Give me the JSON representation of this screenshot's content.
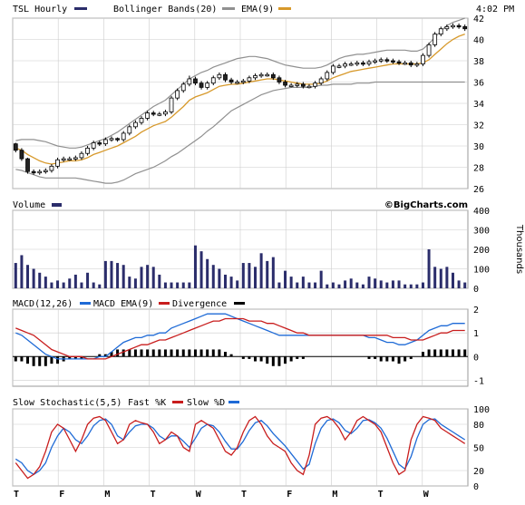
{
  "header": {
    "symbol_label": "TSL Hourly",
    "bollinger_label": "Bollinger Bands(20)",
    "ema_label": "EMA(9)",
    "time_label": "4:02 PM"
  },
  "volume_panel": {
    "label": "Volume",
    "units_label": "Thousands",
    "brand": "©BigCharts.com"
  },
  "macd_panel": {
    "macd_label": "MACD(12,26)",
    "macd_ema_label": "MACD EMA(9)",
    "divergence_label": "Divergence"
  },
  "stoch_panel": {
    "title_label": "Slow Stochastic(5,5)",
    "fast_label": "Fast %K",
    "slow_label": "Slow %D"
  },
  "colors": {
    "candle_up": "#ffffff",
    "candle_down": "#232323",
    "candle_outline": "#000000",
    "navy": "#2b2d6b",
    "bollinger": "#909090",
    "ema": "#d7992b",
    "macd": "#1e6ad6",
    "signal": "#c81d1d",
    "grid": "#cccccc"
  },
  "chart_data": [
    {
      "type": "candlestick",
      "title": "TSL Hourly",
      "x_labels": [
        "T",
        "F",
        "M",
        "T",
        "W",
        "T",
        "F",
        "M",
        "T",
        "W"
      ],
      "ylim": [
        26,
        42
      ],
      "yticks": [
        26,
        28,
        30,
        32,
        34,
        36,
        38,
        40,
        42
      ],
      "close": [
        29.6,
        28.8,
        27.6,
        27.5,
        27.6,
        27.7,
        28.1,
        28.7,
        28.8,
        28.8,
        28.9,
        29.3,
        29.8,
        30.3,
        30.2,
        30.6,
        30.7,
        30.6,
        31.2,
        31.8,
        32.2,
        32.6,
        33.1,
        33.0,
        33.0,
        33.2,
        34.5,
        35.2,
        35.8,
        36.3,
        35.9,
        35.5,
        35.9,
        36.4,
        36.7,
        36.2,
        36.0,
        36.0,
        36.1,
        36.4,
        36.6,
        36.7,
        36.7,
        36.4,
        36.0,
        35.7,
        35.7,
        35.8,
        35.6,
        35.6,
        35.9,
        36.3,
        36.9,
        37.5,
        37.5,
        37.7,
        37.7,
        37.8,
        37.7,
        37.9,
        38.0,
        38.1,
        38.0,
        37.9,
        37.8,
        37.8,
        37.6,
        37.7,
        38.5,
        39.5,
        40.5,
        41.0,
        41.2,
        41.3,
        41.2,
        41.0
      ],
      "open": [
        30.2,
        29.6,
        28.8,
        27.6,
        27.5,
        27.6,
        27.7,
        28.1,
        28.7,
        28.8,
        28.8,
        28.9,
        29.3,
        29.8,
        30.3,
        30.2,
        30.6,
        30.7,
        30.6,
        31.2,
        31.8,
        32.2,
        32.6,
        33.1,
        33.0,
        33.0,
        33.2,
        34.5,
        35.2,
        35.8,
        36.3,
        35.9,
        35.5,
        35.9,
        36.4,
        36.7,
        36.2,
        36.0,
        36.0,
        36.1,
        36.4,
        36.6,
        36.7,
        36.7,
        36.4,
        36.0,
        35.7,
        35.7,
        35.8,
        35.6,
        35.6,
        35.9,
        36.3,
        36.9,
        37.5,
        37.5,
        37.7,
        37.7,
        37.8,
        37.7,
        37.9,
        38.0,
        38.1,
        38.0,
        37.9,
        37.8,
        37.8,
        37.6,
        37.7,
        38.5,
        39.5,
        40.5,
        41.0,
        41.2,
        41.3,
        41.2
      ],
      "high": [
        30.3,
        29.8,
        28.9,
        27.8,
        27.8,
        27.9,
        28.3,
        28.9,
        29.0,
        29.0,
        29.1,
        29.5,
        30.0,
        30.5,
        30.5,
        30.8,
        30.9,
        30.8,
        31.4,
        32.0,
        32.4,
        32.8,
        33.3,
        33.3,
        33.2,
        33.4,
        34.7,
        35.4,
        36.0,
        36.6,
        36.5,
        36.1,
        36.1,
        36.6,
        36.9,
        36.9,
        36.4,
        36.2,
        36.3,
        36.6,
        36.8,
        36.9,
        36.9,
        36.9,
        36.6,
        36.2,
        35.9,
        36.0,
        36.0,
        35.8,
        36.1,
        36.5,
        37.1,
        37.7,
        37.7,
        37.9,
        37.9,
        38.0,
        38.0,
        38.1,
        38.2,
        38.3,
        38.3,
        38.2,
        38.1,
        38.0,
        38.0,
        37.9,
        38.7,
        39.7,
        40.7,
        41.2,
        41.4,
        41.5,
        41.5,
        41.4
      ],
      "low": [
        29.4,
        28.6,
        27.4,
        27.3,
        27.3,
        27.4,
        27.5,
        27.9,
        28.5,
        28.6,
        28.6,
        28.7,
        29.1,
        29.6,
        30.0,
        30.0,
        30.4,
        30.4,
        30.4,
        31.0,
        31.6,
        32.0,
        32.4,
        32.8,
        32.8,
        32.8,
        33.0,
        34.3,
        35.0,
        35.6,
        35.7,
        35.3,
        35.3,
        35.7,
        36.2,
        36.0,
        35.8,
        35.8,
        35.8,
        35.9,
        36.2,
        36.4,
        36.5,
        36.2,
        35.8,
        35.5,
        35.5,
        35.5,
        35.4,
        35.4,
        35.4,
        35.7,
        36.1,
        36.7,
        37.3,
        37.3,
        37.5,
        37.5,
        37.5,
        37.5,
        37.7,
        37.8,
        37.8,
        37.7,
        37.6,
        37.6,
        37.4,
        37.4,
        37.5,
        38.3,
        39.3,
        40.3,
        40.8,
        41.0,
        41.0,
        40.8
      ],
      "ema9": [
        29.8,
        29.6,
        29.2,
        28.9,
        28.6,
        28.4,
        28.3,
        28.4,
        28.5,
        28.6,
        28.6,
        28.7,
        28.9,
        29.2,
        29.4,
        29.6,
        29.8,
        30.0,
        30.3,
        30.6,
        30.9,
        31.3,
        31.6,
        31.9,
        32.1,
        32.3,
        32.7,
        33.2,
        33.7,
        34.3,
        34.6,
        34.8,
        35.0,
        35.3,
        35.6,
        35.7,
        35.8,
        35.8,
        35.9,
        36.0,
        36.1,
        36.2,
        36.3,
        36.3,
        36.2,
        36.1,
        36.0,
        35.9,
        35.8,
        35.8,
        35.8,
        35.9,
        36.1,
        36.4,
        36.6,
        36.8,
        37.0,
        37.1,
        37.2,
        37.3,
        37.4,
        37.5,
        37.6,
        37.7,
        37.7,
        37.7,
        37.7,
        37.7,
        37.8,
        38.1,
        38.6,
        39.1,
        39.6,
        40.0,
        40.3,
        40.5
      ],
      "bb_upper": [
        30.5,
        30.6,
        30.6,
        30.6,
        30.5,
        30.4,
        30.2,
        30.0,
        29.9,
        29.8,
        29.8,
        29.9,
        30.1,
        30.3,
        30.5,
        30.7,
        31.0,
        31.3,
        31.7,
        32.1,
        32.5,
        32.9,
        33.3,
        33.7,
        34.0,
        34.3,
        34.8,
        35.3,
        35.8,
        36.3,
        36.6,
        36.9,
        37.1,
        37.4,
        37.6,
        37.8,
        38.0,
        38.2,
        38.3,
        38.4,
        38.4,
        38.3,
        38.2,
        38.0,
        37.8,
        37.6,
        37.5,
        37.4,
        37.3,
        37.3,
        37.3,
        37.4,
        37.6,
        37.9,
        38.2,
        38.4,
        38.5,
        38.6,
        38.6,
        38.7,
        38.8,
        38.9,
        39.0,
        39.0,
        39.0,
        39.0,
        38.9,
        38.9,
        39.1,
        39.6,
        40.2,
        40.8,
        41.3,
        41.6,
        41.8,
        42.0
      ],
      "bb_lower": [
        27.8,
        27.7,
        27.5,
        27.3,
        27.1,
        27.0,
        27.0,
        27.0,
        27.0,
        27.0,
        27.0,
        26.9,
        26.8,
        26.7,
        26.6,
        26.5,
        26.5,
        26.6,
        26.8,
        27.1,
        27.4,
        27.6,
        27.8,
        28.0,
        28.3,
        28.6,
        29.0,
        29.3,
        29.7,
        30.1,
        30.5,
        30.9,
        31.4,
        31.8,
        32.3,
        32.8,
        33.3,
        33.6,
        33.9,
        34.2,
        34.5,
        34.8,
        35.0,
        35.2,
        35.3,
        35.4,
        35.5,
        35.5,
        35.5,
        35.5,
        35.6,
        35.7,
        35.7,
        35.8,
        35.8,
        35.8,
        35.8,
        35.9,
        35.9,
        35.9,
        36.0,
        36.0,
        36.0,
        36.0,
        36.0,
        36.0,
        36.0,
        36.0,
        36.0,
        36.0,
        36.0,
        36.0,
        36.0,
        36.0,
        36.0,
        36.0
      ]
    },
    {
      "type": "bar",
      "title": "Volume",
      "ylabel": "Thousands",
      "ylim": [
        0,
        400
      ],
      "yticks": [
        0,
        100,
        200,
        300,
        400
      ],
      "values": [
        130,
        170,
        120,
        100,
        80,
        60,
        30,
        40,
        30,
        50,
        70,
        30,
        80,
        30,
        20,
        140,
        140,
        130,
        120,
        60,
        50,
        110,
        120,
        110,
        70,
        30,
        30,
        30,
        30,
        30,
        220,
        190,
        150,
        120,
        100,
        70,
        60,
        40,
        130,
        130,
        110,
        180,
        140,
        160,
        30,
        90,
        60,
        30,
        60,
        30,
        30,
        90,
        20,
        30,
        20,
        40,
        50,
        30,
        20,
        60,
        50,
        40,
        30,
        40,
        40,
        20,
        20,
        20,
        30,
        200,
        110,
        100,
        110,
        80,
        40,
        30
      ]
    },
    {
      "type": "line",
      "title": "MACD(12,26)",
      "ylim": [
        -1.25,
        2.0
      ],
      "yticks": [
        -1,
        0,
        1,
        2
      ],
      "series": [
        {
          "name": "MACD EMA(9)",
          "values": [
            1.0,
            0.9,
            0.7,
            0.5,
            0.3,
            0.1,
            0.0,
            -0.1,
            -0.1,
            -0.1,
            -0.1,
            -0.1,
            -0.1,
            -0.1,
            0.0,
            0.0,
            0.2,
            0.4,
            0.6,
            0.7,
            0.8,
            0.8,
            0.9,
            0.9,
            1.0,
            1.0,
            1.2,
            1.3,
            1.4,
            1.5,
            1.6,
            1.7,
            1.8,
            1.8,
            1.8,
            1.8,
            1.7,
            1.6,
            1.5,
            1.4,
            1.3,
            1.2,
            1.1,
            1.0,
            0.9,
            0.9,
            0.9,
            0.9,
            0.9,
            0.9,
            0.9,
            0.9,
            0.9,
            0.9,
            0.9,
            0.9,
            0.9,
            0.9,
            0.9,
            0.8,
            0.8,
            0.7,
            0.6,
            0.6,
            0.5,
            0.5,
            0.6,
            0.7,
            0.9,
            1.1,
            1.2,
            1.3,
            1.3,
            1.4,
            1.4,
            1.4
          ]
        },
        {
          "name": "Divergence",
          "values": [
            1.2,
            1.1,
            1.0,
            0.9,
            0.7,
            0.5,
            0.3,
            0.2,
            0.1,
            0.0,
            0.0,
            0.0,
            -0.1,
            -0.1,
            -0.1,
            -0.1,
            0.0,
            0.1,
            0.2,
            0.3,
            0.4,
            0.5,
            0.5,
            0.6,
            0.7,
            0.7,
            0.8,
            0.9,
            1.0,
            1.1,
            1.2,
            1.3,
            1.4,
            1.5,
            1.5,
            1.6,
            1.6,
            1.6,
            1.6,
            1.5,
            1.5,
            1.5,
            1.4,
            1.4,
            1.3,
            1.2,
            1.1,
            1.0,
            1.0,
            0.9,
            0.9,
            0.9,
            0.9,
            0.9,
            0.9,
            0.9,
            0.9,
            0.9,
            0.9,
            0.9,
            0.9,
            0.9,
            0.9,
            0.8,
            0.8,
            0.8,
            0.7,
            0.7,
            0.7,
            0.8,
            0.9,
            1.0,
            1.0,
            1.1,
            1.1,
            1.1
          ]
        }
      ],
      "divergence_histogram": [
        -0.2,
        -0.2,
        -0.3,
        -0.4,
        -0.4,
        -0.4,
        -0.3,
        -0.3,
        -0.2,
        -0.1,
        -0.1,
        -0.1,
        0.0,
        0.0,
        0.1,
        0.1,
        0.2,
        0.3,
        0.3,
        0.3,
        0.3,
        0.3,
        0.3,
        0.3,
        0.3,
        0.3,
        0.3,
        0.3,
        0.3,
        0.3,
        0.3,
        0.3,
        0.3,
        0.3,
        0.3,
        0.2,
        0.1,
        0.0,
        -0.1,
        -0.1,
        -0.2,
        -0.2,
        -0.3,
        -0.4,
        -0.4,
        -0.3,
        -0.2,
        -0.1,
        -0.1,
        0.0,
        0.0,
        0.0,
        0.0,
        0.0,
        0.0,
        0.0,
        0.0,
        0.0,
        0.0,
        -0.1,
        -0.1,
        -0.2,
        -0.2,
        -0.2,
        -0.3,
        -0.2,
        -0.1,
        0.0,
        0.2,
        0.3,
        0.3,
        0.3,
        0.3,
        0.3,
        0.3,
        0.3
      ]
    },
    {
      "type": "line",
      "title": "Slow Stochastic(5,5)",
      "ylim": [
        0,
        100
      ],
      "yticks": [
        0,
        20,
        50,
        80,
        100
      ],
      "series": [
        {
          "name": "Fast %K",
          "values": [
            30,
            20,
            10,
            15,
            25,
            45,
            70,
            80,
            75,
            60,
            45,
            60,
            80,
            88,
            90,
            85,
            70,
            55,
            60,
            80,
            85,
            82,
            80,
            70,
            55,
            60,
            70,
            65,
            50,
            45,
            80,
            85,
            80,
            75,
            60,
            45,
            40,
            50,
            70,
            85,
            90,
            80,
            65,
            55,
            50,
            45,
            30,
            20,
            15,
            40,
            80,
            88,
            90,
            85,
            75,
            60,
            70,
            85,
            90,
            85,
            80,
            70,
            50,
            30,
            15,
            20,
            60,
            80,
            90,
            88,
            85,
            75,
            70,
            65,
            60,
            55
          ]
        },
        {
          "name": "Slow %D",
          "values": [
            35,
            30,
            20,
            15,
            20,
            30,
            50,
            65,
            75,
            70,
            60,
            55,
            65,
            78,
            85,
            87,
            80,
            65,
            60,
            70,
            78,
            80,
            80,
            75,
            65,
            60,
            65,
            65,
            58,
            50,
            62,
            75,
            80,
            78,
            70,
            58,
            48,
            48,
            58,
            72,
            82,
            85,
            78,
            68,
            60,
            52,
            42,
            32,
            22,
            28,
            55,
            75,
            85,
            87,
            82,
            72,
            68,
            75,
            85,
            86,
            82,
            75,
            62,
            45,
            28,
            22,
            38,
            62,
            80,
            86,
            87,
            80,
            75,
            70,
            65,
            60
          ]
        }
      ]
    }
  ]
}
